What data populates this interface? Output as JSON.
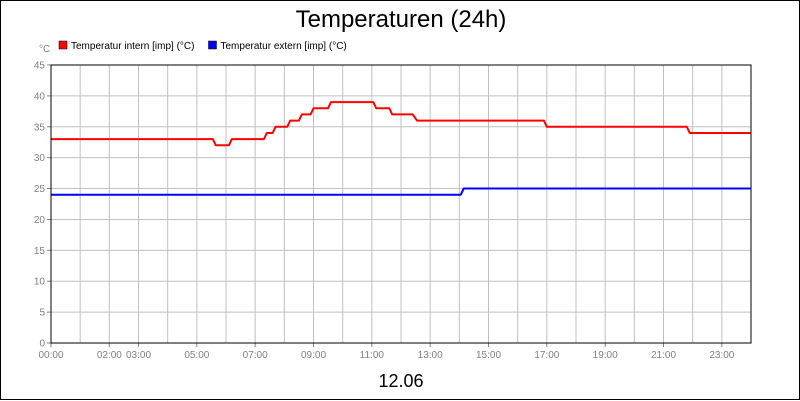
{
  "chart_data": {
    "type": "line",
    "title": "Temperaturen (24h)",
    "date_label": "12.06",
    "y_unit": "°C",
    "ylim": [
      0,
      45
    ],
    "y_ticks": [
      0,
      5,
      10,
      15,
      20,
      25,
      30,
      35,
      40,
      45
    ],
    "xlim": [
      0,
      24
    ],
    "x_ticks": [
      {
        "h": 0,
        "label": "00:00"
      },
      {
        "h": 2,
        "label": "02:00"
      },
      {
        "h": 3,
        "label": "03:00"
      },
      {
        "h": 5,
        "label": "05:00"
      },
      {
        "h": 7,
        "label": "07:00"
      },
      {
        "h": 9,
        "label": "09:00"
      },
      {
        "h": 11,
        "label": "11:00"
      },
      {
        "h": 13,
        "label": "13:00"
      },
      {
        "h": 15,
        "label": "15:00"
      },
      {
        "h": 17,
        "label": "17:00"
      },
      {
        "h": 19,
        "label": "19:00"
      },
      {
        "h": 21,
        "label": "21:00"
      },
      {
        "h": 23,
        "label": "23:00"
      }
    ],
    "grid": true,
    "legend_position": "top-left",
    "series": [
      {
        "name": "Temperatur intern [imp] (°C)",
        "color": "#ff0000",
        "points": [
          [
            0,
            33
          ],
          [
            5.55,
            33
          ],
          [
            5.65,
            32
          ],
          [
            6.1,
            32
          ],
          [
            6.2,
            33
          ],
          [
            7.3,
            33
          ],
          [
            7.4,
            34
          ],
          [
            7.6,
            34
          ],
          [
            7.7,
            35
          ],
          [
            8.1,
            35
          ],
          [
            8.2,
            36
          ],
          [
            8.5,
            36
          ],
          [
            8.6,
            37
          ],
          [
            8.9,
            37
          ],
          [
            9.0,
            38
          ],
          [
            9.5,
            38
          ],
          [
            9.6,
            39
          ],
          [
            11.05,
            39
          ],
          [
            11.15,
            38
          ],
          [
            11.6,
            38
          ],
          [
            11.7,
            37
          ],
          [
            12.4,
            37
          ],
          [
            12.55,
            36
          ],
          [
            16.9,
            36
          ],
          [
            17.0,
            35
          ],
          [
            21.8,
            35
          ],
          [
            21.9,
            34
          ],
          [
            24,
            34
          ]
        ]
      },
      {
        "name": "Temperatur extern [imp] (°C)",
        "color": "#0000ff",
        "points": [
          [
            0,
            24
          ],
          [
            14.05,
            24
          ],
          [
            14.15,
            25
          ],
          [
            24,
            25
          ]
        ]
      }
    ]
  }
}
